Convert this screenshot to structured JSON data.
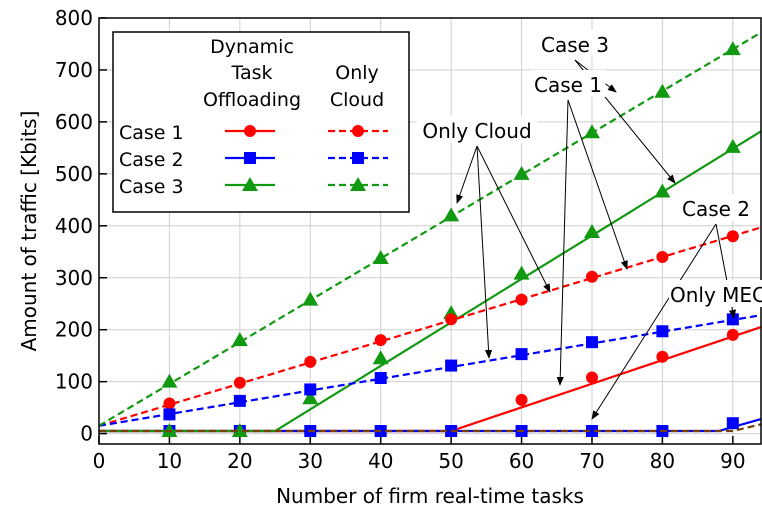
{
  "chart_data": {
    "type": "line",
    "xlabel": "Number of firm real-time tasks",
    "ylabel": "Amount of traffic [Kbits]",
    "xlim": [
      0,
      94
    ],
    "ylim": [
      -20,
      800
    ],
    "xticks": [
      0,
      10,
      20,
      30,
      40,
      50,
      60,
      70,
      80,
      90
    ],
    "yticks": [
      0,
      100,
      200,
      300,
      400,
      500,
      600,
      700,
      800
    ],
    "grid": true,
    "legend_position": "top-left",
    "legend": {
      "col1_header": [
        "Dynamic",
        "Task",
        "Offloading"
      ],
      "col2_header": [
        "Only",
        "Cloud"
      ],
      "rows": [
        "Case 1",
        "Case 2",
        "Case 3"
      ]
    },
    "colors": {
      "case1": "#ff0000",
      "case2": "#0000ff",
      "case3": "#119911",
      "mec": "#7a3e00"
    },
    "series": [
      {
        "name": "Case 1",
        "group": "Dynamic Task Offloading",
        "color": "#ff0000",
        "dashed": false,
        "marker": "circle",
        "line": [
          [
            0,
            5
          ],
          [
            50,
            5
          ],
          [
            94,
            205
          ]
        ],
        "markers": [
          [
            10,
            5
          ],
          [
            20,
            5
          ],
          [
            30,
            5
          ],
          [
            40,
            5
          ],
          [
            50,
            5
          ],
          [
            60,
            65
          ],
          [
            70,
            108
          ],
          [
            80,
            148
          ],
          [
            90,
            190
          ]
        ]
      },
      {
        "name": "Case 2",
        "group": "Dynamic Task Offloading",
        "color": "#0000ff",
        "dashed": false,
        "marker": "square",
        "line": [
          [
            0,
            5
          ],
          [
            88,
            5
          ],
          [
            94,
            28
          ]
        ],
        "markers": [
          [
            10,
            5
          ],
          [
            20,
            5
          ],
          [
            30,
            5
          ],
          [
            40,
            5
          ],
          [
            50,
            5
          ],
          [
            60,
            5
          ],
          [
            70,
            5
          ],
          [
            80,
            5
          ],
          [
            90,
            20
          ]
        ]
      },
      {
        "name": "Case 3",
        "group": "Dynamic Task Offloading",
        "color": "#119911",
        "dashed": false,
        "marker": "triangle",
        "line": [
          [
            0,
            5
          ],
          [
            25,
            5
          ],
          [
            94,
            582
          ]
        ],
        "markers": [
          [
            10,
            5
          ],
          [
            20,
            5
          ],
          [
            30,
            68
          ],
          [
            40,
            145
          ],
          [
            50,
            232
          ],
          [
            60,
            308
          ],
          [
            70,
            388
          ],
          [
            80,
            466
          ],
          [
            90,
            552
          ]
        ]
      },
      {
        "name": "Case 1",
        "group": "Only Cloud",
        "color": "#ff0000",
        "dashed": true,
        "marker": "circle",
        "line": [
          [
            0,
            15
          ],
          [
            94,
            397
          ]
        ],
        "markers": [
          [
            10,
            58
          ],
          [
            20,
            98
          ],
          [
            30,
            138
          ],
          [
            40,
            180
          ],
          [
            50,
            220
          ],
          [
            60,
            258
          ],
          [
            70,
            302
          ],
          [
            80,
            340
          ],
          [
            90,
            380
          ]
        ]
      },
      {
        "name": "Case 2",
        "group": "Only Cloud",
        "color": "#0000ff",
        "dashed": true,
        "marker": "square",
        "line": [
          [
            0,
            15
          ],
          [
            94,
            228
          ]
        ],
        "markers": [
          [
            10,
            37
          ],
          [
            20,
            63
          ],
          [
            30,
            85
          ],
          [
            40,
            107
          ],
          [
            50,
            131
          ],
          [
            60,
            153
          ],
          [
            70,
            176
          ],
          [
            80,
            197
          ],
          [
            90,
            220
          ]
        ]
      },
      {
        "name": "Only MEC",
        "group": "Only MEC",
        "color": "#7a3e00",
        "dashed": true,
        "marker": "none",
        "line": [
          [
            0,
            5
          ],
          [
            90,
            5
          ],
          [
            94,
            18
          ]
        ],
        "markers": []
      },
      {
        "name": "Case 3",
        "group": "Only Cloud",
        "color": "#119911",
        "dashed": true,
        "marker": "triangle",
        "line": [
          [
            0,
            15
          ],
          [
            94,
            772
          ]
        ],
        "markers": [
          [
            10,
            100
          ],
          [
            20,
            180
          ],
          [
            30,
            258
          ],
          [
            40,
            338
          ],
          [
            50,
            420
          ],
          [
            60,
            500
          ],
          [
            70,
            580
          ],
          [
            80,
            658
          ],
          [
            90,
            740
          ]
        ]
      }
    ],
    "annotations": [
      {
        "text": "Case 3",
        "label_at": [
          575,
          52
        ],
        "targets": [
          [
            616,
            92
          ],
          [
            675,
            183
          ]
        ]
      },
      {
        "text": "Case 1",
        "label_at": [
          568,
          92
        ],
        "targets": [
          [
            627,
            269
          ],
          [
            560,
            385
          ]
        ]
      },
      {
        "text": "Only Cloud",
        "label_at": [
          477,
          138
        ],
        "targets": [
          [
            457,
            203
          ],
          [
            550,
            292
          ],
          [
            489,
            358
          ]
        ]
      },
      {
        "text": "Case 2",
        "label_at": [
          716,
          216
        ],
        "targets": [
          [
            734,
            318
          ],
          [
            592,
            419
          ]
        ]
      },
      {
        "text": "Only MEC",
        "label_at": [
          718,
          302
        ],
        "targets": []
      }
    ]
  }
}
